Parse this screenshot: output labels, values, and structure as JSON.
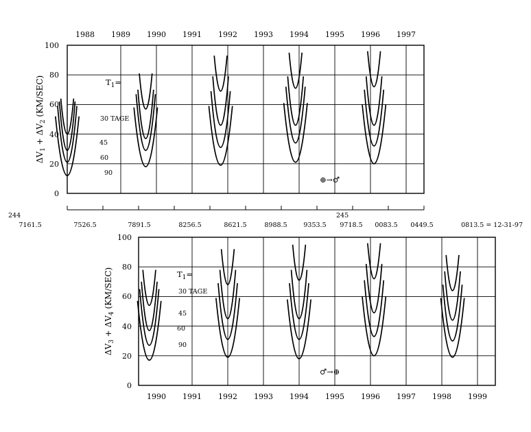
{
  "chart_data": [
    {
      "type": "line",
      "title": "",
      "years_top": [
        "1988",
        "1989",
        "1990",
        "1991",
        "1992",
        "1993",
        "1994",
        "1995",
        "1996",
        "1997"
      ],
      "ylabel": {
        "base": "ΔV",
        "s1": "1",
        "mid": " + ΔV",
        "s2": "2",
        "tail": " (KM/SEC)"
      },
      "ylim": [
        0,
        100
      ],
      "yticks": [
        "0",
        "20",
        "40",
        "60",
        "80",
        "100"
      ],
      "grid": true,
      "jd_prefix_left": "244",
      "jd_prefix_mid": "245",
      "jd_labels": [
        "7161.5",
        "7526.5",
        "7891.5",
        "8256.5",
        "8621.5",
        "8988.5",
        "9353.5",
        "9718.5",
        "0083.5",
        "0449.5",
        "0813.5 = 12-31-97"
      ],
      "t1_label": {
        "base": "T",
        "sub": "1",
        "tail": "="
      },
      "series_labels": [
        "30 TAGE",
        "45",
        "60",
        "90"
      ],
      "direction": {
        "from": "⊕",
        "arrow": "→",
        "to": "♂"
      },
      "windows": [
        {
          "center": 1988.0,
          "minima": [
            40,
            29,
            21,
            12
          ]
        },
        {
          "center": 1990.2,
          "minima": [
            57,
            37,
            29,
            18
          ]
        },
        {
          "center": 1992.3,
          "minima": [
            69,
            46,
            31,
            19
          ]
        },
        {
          "center": 1994.4,
          "minima": [
            71,
            46,
            34,
            21
          ]
        },
        {
          "center": 1996.6,
          "minima": [
            72,
            46,
            32,
            20
          ]
        }
      ]
    },
    {
      "type": "line",
      "title": "",
      "years_bottom": [
        "1990",
        "1991",
        "1992",
        "1993",
        "1994",
        "1995",
        "1996",
        "1997",
        "1998",
        "1999"
      ],
      "ylabel": {
        "base": "ΔV",
        "s1": "3",
        "mid": " + ΔV",
        "s2": "4",
        "tail": " (KM/SEC)"
      },
      "ylim": [
        0,
        100
      ],
      "yticks": [
        "0",
        "20",
        "40",
        "60",
        "80",
        "100"
      ],
      "grid": true,
      "t1_label": {
        "base": "T",
        "sub": "1",
        "tail": "="
      },
      "series_labels": [
        "30 TAGE",
        "45",
        "60",
        "90"
      ],
      "direction": {
        "from": "♂",
        "arrow": "→",
        "to": "⊕"
      },
      "windows": [
        {
          "center": 1990.3,
          "minima": [
            54,
            37,
            27,
            17
          ]
        },
        {
          "center": 1992.5,
          "minima": [
            68,
            45,
            31,
            19
          ]
        },
        {
          "center": 1994.5,
          "minima": [
            71,
            45,
            31,
            18
          ]
        },
        {
          "center": 1996.6,
          "minima": [
            72,
            49,
            33,
            20
          ]
        },
        {
          "center": 1998.8,
          "minima": [
            64,
            44,
            30,
            19
          ]
        }
      ]
    }
  ]
}
